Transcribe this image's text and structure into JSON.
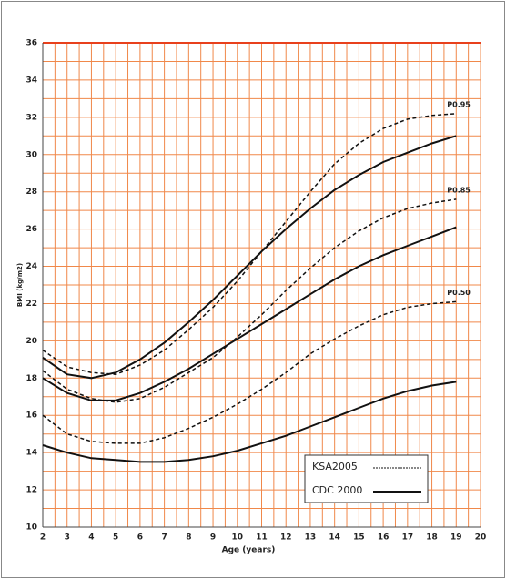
{
  "chart_data": {
    "type": "line",
    "x_label": "Age (years)",
    "y_label": "BMI (kg/m2)",
    "x": [
      2,
      3,
      4,
      5,
      6,
      7,
      8,
      9,
      10,
      11,
      12,
      13,
      14,
      15,
      16,
      17,
      18,
      19
    ],
    "groups": [
      {
        "name": "KSA2005",
        "color": "#111111",
        "dashed": true,
        "lines": [
          {
            "label": "P0.95",
            "values": [
              19.5,
              18.6,
              18.3,
              18.2,
              18.7,
              19.5,
              20.6,
              21.8,
              23.2,
              24.8,
              26.4,
              28.0,
              29.5,
              30.6,
              31.4,
              31.9,
              32.1,
              32.2
            ]
          },
          {
            "label": "P0.85",
            "values": [
              18.4,
              17.4,
              16.9,
              16.7,
              16.9,
              17.5,
              18.3,
              19.1,
              20.2,
              21.4,
              22.7,
              23.9,
              25.0,
              25.9,
              26.6,
              27.1,
              27.4,
              27.6
            ]
          },
          {
            "label": "P0.50",
            "values": [
              16.0,
              15.0,
              14.6,
              14.5,
              14.5,
              14.8,
              15.3,
              15.9,
              16.6,
              17.4,
              18.3,
              19.3,
              20.1,
              20.8,
              21.4,
              21.8,
              22.0,
              22.1
            ]
          }
        ]
      },
      {
        "name": "CDC 2000",
        "color": "#111111",
        "dashed": false,
        "lines": [
          {
            "values": [
              19.1,
              18.2,
              18.0,
              18.3,
              19.0,
              19.9,
              21.0,
              22.2,
              23.5,
              24.8,
              26.0,
              27.1,
              28.1,
              28.9,
              29.6,
              30.1,
              30.6,
              31.0
            ]
          },
          {
            "values": [
              18.0,
              17.2,
              16.8,
              16.8,
              17.2,
              17.8,
              18.5,
              19.3,
              20.1,
              20.9,
              21.7,
              22.5,
              23.3,
              24.0,
              24.6,
              25.1,
              25.6,
              26.1
            ]
          },
          {
            "values": [
              14.4,
              14.0,
              13.7,
              13.6,
              13.5,
              13.5,
              13.6,
              13.8,
              14.1,
              14.5,
              14.9,
              15.4,
              15.9,
              16.4,
              16.9,
              17.3,
              17.6,
              17.8
            ]
          }
        ]
      }
    ],
    "xlim": [
      2,
      20
    ],
    "ylim": [
      10,
      36
    ],
    "xticks": [
      2,
      3,
      4,
      5,
      6,
      7,
      8,
      9,
      10,
      11,
      12,
      13,
      14,
      15,
      16,
      17,
      18,
      19,
      20
    ],
    "yticks": [
      10,
      12,
      14,
      16,
      18,
      20,
      22,
      24,
      26,
      28,
      30,
      32,
      34,
      36
    ],
    "x_minor_ticks": [
      2.5,
      3.5,
      4.5,
      5.5,
      6.5,
      7.5,
      8.5,
      9.5,
      10.5,
      11.5,
      12.5,
      13.5,
      14.5,
      15.5,
      16.5,
      17.5,
      18.5,
      19.5
    ],
    "y_minor_ticks": [
      11,
      13,
      15,
      17,
      19,
      21,
      23,
      25,
      27,
      29,
      31,
      33,
      35
    ],
    "grid": true,
    "grid_color": "#f0884a",
    "top_line_color": "#e8401c",
    "legend_position": "lower right"
  }
}
